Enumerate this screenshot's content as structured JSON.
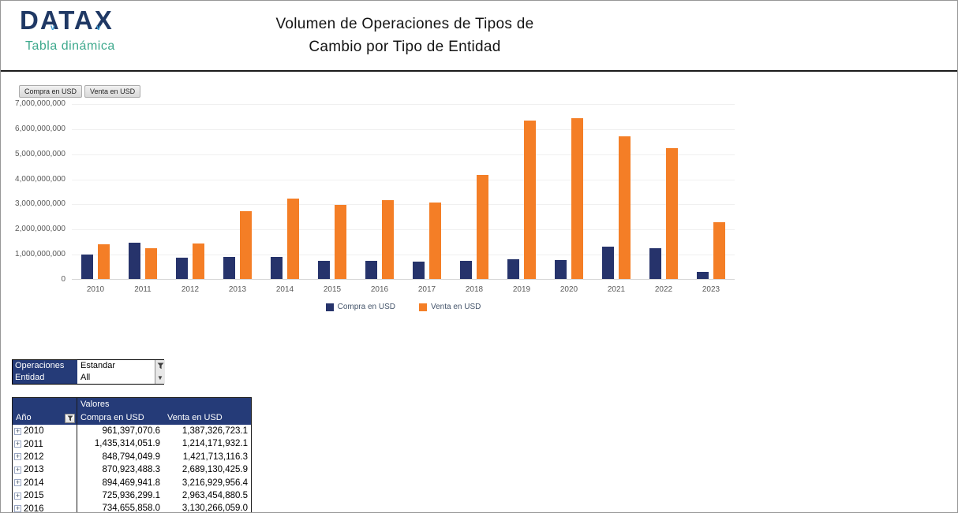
{
  "header": {
    "logo_text": "DATAX",
    "logo_subtitle": "Tabla dinámica",
    "title_line1": "Volumen de Operaciones de Tipos de",
    "title_line2": "Cambio por Tipo de Entidad"
  },
  "icons": {
    "logo_tick": "v",
    "dropdown_arrow": "▼",
    "expand_plus": "+"
  },
  "chart": {
    "field_buttons": [
      "Compra en USD",
      "Venta en USD"
    ]
  },
  "chart_data": {
    "type": "bar",
    "title": "",
    "xlabel": "",
    "ylabel": "",
    "categories": [
      "2010",
      "2011",
      "2012",
      "2013",
      "2014",
      "2015",
      "2016",
      "2017",
      "2018",
      "2019",
      "2020",
      "2021",
      "2022",
      "2023"
    ],
    "series": [
      {
        "name": "Compra en USD",
        "color": "#26336B",
        "values": [
          961397070.6,
          1435314051.9,
          848794049.9,
          870923488.3,
          894469941.8,
          725936299.1,
          734655858.0,
          690000000,
          715000000,
          790000000,
          745000000,
          1290000000,
          1215000000,
          280000000
        ]
      },
      {
        "name": "Venta en USD",
        "color": "#F47E26",
        "values": [
          1387326723.1,
          1214171932.1,
          1421713116.3,
          2689130425.9,
          3216929956.4,
          2963454880.5,
          3130266059.0,
          3050000000,
          4150000000,
          6300000000,
          6400000000,
          5680000000,
          5210000000,
          2250000000
        ]
      }
    ],
    "ylim": [
      0,
      7000000000
    ],
    "ytick_step": 1000000000,
    "ytick_labels": [
      "0",
      "1,000,000,000",
      "2,000,000,000",
      "3,000,000,000",
      "4,000,000,000",
      "5,000,000,000",
      "6,000,000,000",
      "7,000,000,000"
    ],
    "grid": true,
    "legend_position": "bottom"
  },
  "filters": {
    "rows": [
      {
        "label": "Operaciones",
        "value": "Estandar",
        "control": "filter"
      },
      {
        "label": "Entidad",
        "value": "All",
        "control": "dropdown"
      }
    ]
  },
  "table": {
    "values_header": "Valores",
    "columns": [
      "Año",
      "Compra en USD",
      "Venta en USD"
    ],
    "rows": [
      {
        "year": "2010",
        "compra": "961,397,070.6",
        "venta": "1,387,326,723.1"
      },
      {
        "year": "2011",
        "compra": "1,435,314,051.9",
        "venta": "1,214,171,932.1"
      },
      {
        "year": "2012",
        "compra": "848,794,049.9",
        "venta": "1,421,713,116.3"
      },
      {
        "year": "2013",
        "compra": "870,923,488.3",
        "venta": "2,689,130,425.9"
      },
      {
        "year": "2014",
        "compra": "894,469,941.8",
        "venta": "3,216,929,956.4"
      },
      {
        "year": "2015",
        "compra": "725,936,299.1",
        "venta": "2,963,454,880.5"
      },
      {
        "year": "2016",
        "compra": "734,655,858.0",
        "venta": "3,130,266,059.0"
      }
    ]
  }
}
